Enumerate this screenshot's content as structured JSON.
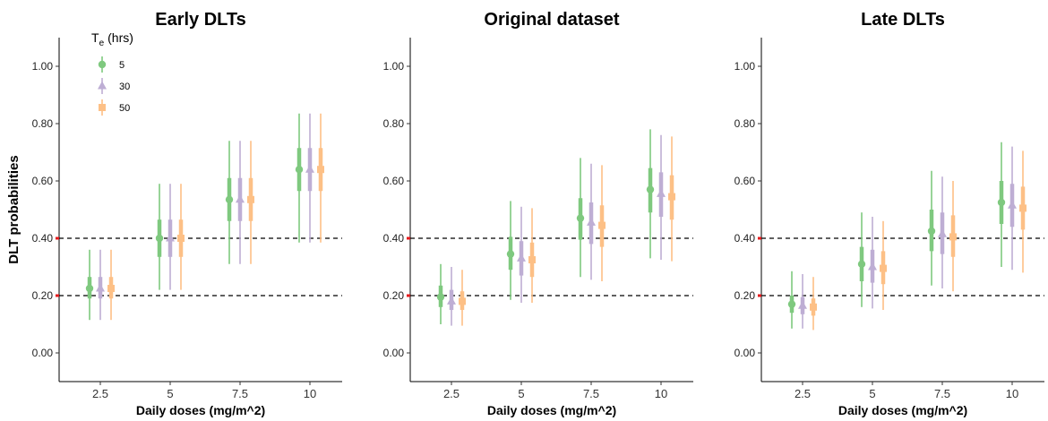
{
  "colors": {
    "5": "#7fc97f",
    "30": "#beaed4",
    "50": "#fdc086",
    "threshold_tick": "#e41a1c"
  },
  "legend": {
    "title": "T",
    "title_sub": "e",
    "title_unit": "(hrs)",
    "items": [
      "5",
      "30",
      "50"
    ]
  },
  "ylabel": "DLT probabilities",
  "chart_data": [
    {
      "type": "scatter",
      "title": "Early DLTs",
      "xlabel": "Daily doses (mg/m^2)",
      "categories": [
        "2.5",
        "5",
        "7.5",
        "10"
      ],
      "ylim": [
        -0.1,
        1.1
      ],
      "yticks": [
        "0.00",
        "0.20",
        "0.40",
        "0.60",
        "0.80",
        "1.00"
      ],
      "hlines": [
        0.2,
        0.4
      ],
      "series": [
        {
          "name": "5",
          "shape": "circle",
          "y": [
            0.225,
            0.4,
            0.535,
            0.64
          ],
          "inner": [
            [
              0.19,
              0.265
            ],
            [
              0.335,
              0.465
            ],
            [
              0.46,
              0.61
            ],
            [
              0.565,
              0.715
            ]
          ],
          "outer": [
            [
              0.115,
              0.36
            ],
            [
              0.22,
              0.59
            ],
            [
              0.31,
              0.74
            ],
            [
              0.385,
              0.835
            ]
          ]
        },
        {
          "name": "30",
          "shape": "triangle",
          "y": [
            0.225,
            0.4,
            0.535,
            0.64
          ],
          "inner": [
            [
              0.19,
              0.265
            ],
            [
              0.335,
              0.465
            ],
            [
              0.46,
              0.61
            ],
            [
              0.565,
              0.715
            ]
          ],
          "outer": [
            [
              0.115,
              0.36
            ],
            [
              0.22,
              0.59
            ],
            [
              0.31,
              0.74
            ],
            [
              0.385,
              0.835
            ]
          ]
        },
        {
          "name": "50",
          "shape": "square",
          "y": [
            0.225,
            0.4,
            0.535,
            0.64
          ],
          "inner": [
            [
              0.19,
              0.265
            ],
            [
              0.335,
              0.465
            ],
            [
              0.46,
              0.61
            ],
            [
              0.565,
              0.715
            ]
          ],
          "outer": [
            [
              0.115,
              0.36
            ],
            [
              0.22,
              0.59
            ],
            [
              0.31,
              0.74
            ],
            [
              0.385,
              0.835
            ]
          ]
        }
      ]
    },
    {
      "type": "scatter",
      "title": "Original dataset",
      "xlabel": "Daily doses (mg/m^2)",
      "categories": [
        "2.5",
        "5",
        "7.5",
        "10"
      ],
      "ylim": [
        -0.1,
        1.1
      ],
      "yticks": [
        "0.00",
        "0.20",
        "0.40",
        "0.60",
        "0.80",
        "1.00"
      ],
      "hlines": [
        0.2,
        0.4
      ],
      "series": [
        {
          "name": "5",
          "shape": "circle",
          "y": [
            0.195,
            0.345,
            0.47,
            0.57
          ],
          "inner": [
            [
              0.16,
              0.235
            ],
            [
              0.29,
              0.405
            ],
            [
              0.395,
              0.54
            ],
            [
              0.49,
              0.645
            ]
          ],
          "outer": [
            [
              0.1,
              0.31
            ],
            [
              0.185,
              0.53
            ],
            [
              0.265,
              0.68
            ],
            [
              0.33,
              0.78
            ]
          ]
        },
        {
          "name": "30",
          "shape": "triangle",
          "y": [
            0.18,
            0.33,
            0.455,
            0.555
          ],
          "inner": [
            [
              0.15,
              0.22
            ],
            [
              0.27,
              0.39
            ],
            [
              0.38,
              0.525
            ],
            [
              0.475,
              0.63
            ]
          ],
          "outer": [
            [
              0.095,
              0.3
            ],
            [
              0.175,
              0.51
            ],
            [
              0.255,
              0.66
            ],
            [
              0.325,
              0.76
            ]
          ]
        },
        {
          "name": "50",
          "shape": "square",
          "y": [
            0.18,
            0.325,
            0.445,
            0.545
          ],
          "inner": [
            [
              0.15,
              0.215
            ],
            [
              0.265,
              0.385
            ],
            [
              0.37,
              0.515
            ],
            [
              0.465,
              0.62
            ]
          ],
          "outer": [
            [
              0.095,
              0.29
            ],
            [
              0.175,
              0.505
            ],
            [
              0.25,
              0.655
            ],
            [
              0.32,
              0.755
            ]
          ]
        }
      ]
    },
    {
      "type": "scatter",
      "title": "Late DLTs",
      "xlabel": "Daily doses (mg/m^2)",
      "categories": [
        "2.5",
        "5",
        "7.5",
        "10"
      ],
      "ylim": [
        -0.1,
        1.1
      ],
      "yticks": [
        "0.00",
        "0.20",
        "0.40",
        "0.60",
        "0.80",
        "1.00"
      ],
      "hlines": [
        0.2,
        0.4
      ],
      "series": [
        {
          "name": "5",
          "shape": "circle",
          "y": [
            0.17,
            0.31,
            0.425,
            0.525
          ],
          "inner": [
            [
              0.14,
              0.2
            ],
            [
              0.25,
              0.37
            ],
            [
              0.355,
              0.5
            ],
            [
              0.45,
              0.6
            ]
          ],
          "outer": [
            [
              0.085,
              0.285
            ],
            [
              0.16,
              0.49
            ],
            [
              0.235,
              0.635
            ],
            [
              0.3,
              0.735
            ]
          ]
        },
        {
          "name": "30",
          "shape": "triangle",
          "y": [
            0.165,
            0.3,
            0.415,
            0.515
          ],
          "inner": [
            [
              0.135,
              0.195
            ],
            [
              0.245,
              0.36
            ],
            [
              0.345,
              0.49
            ],
            [
              0.44,
              0.59
            ]
          ],
          "outer": [
            [
              0.085,
              0.275
            ],
            [
              0.155,
              0.475
            ],
            [
              0.225,
              0.615
            ],
            [
              0.29,
              0.72
            ]
          ]
        },
        {
          "name": "50",
          "shape": "square",
          "y": [
            0.16,
            0.295,
            0.405,
            0.505
          ],
          "inner": [
            [
              0.13,
              0.19
            ],
            [
              0.24,
              0.355
            ],
            [
              0.335,
              0.48
            ],
            [
              0.43,
              0.58
            ]
          ],
          "outer": [
            [
              0.08,
              0.265
            ],
            [
              0.15,
              0.46
            ],
            [
              0.215,
              0.6
            ],
            [
              0.28,
              0.705
            ]
          ]
        }
      ]
    }
  ]
}
